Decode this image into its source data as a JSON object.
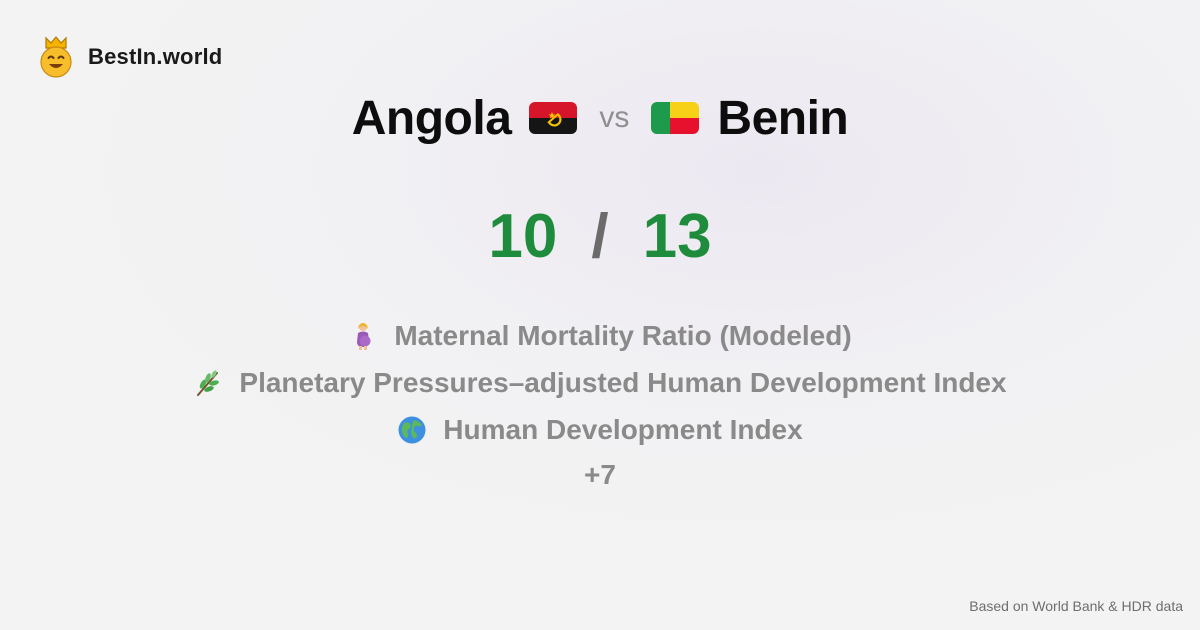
{
  "brand": {
    "name": "BestIn.world",
    "logo_icon": "crowned-smiley-icon"
  },
  "comparison": {
    "left_country": "Angola",
    "left_flag": "angola-flag-icon",
    "vs_label": "vs",
    "right_country": "Benin",
    "right_flag": "benin-flag-icon"
  },
  "score": {
    "left": "10",
    "separator": "/",
    "right": "13",
    "color": "#1e8c3c"
  },
  "metrics": [
    {
      "icon": "pregnant-woman-icon",
      "label": "Maternal Mortality Ratio (Modeled)"
    },
    {
      "icon": "herb-icon",
      "label": "Planetary Pressures–adjusted Human Development Index"
    },
    {
      "icon": "globe-icon",
      "label": "Human Development Index"
    }
  ],
  "more_label": "+7",
  "footer": "Based on World Bank & HDR data"
}
